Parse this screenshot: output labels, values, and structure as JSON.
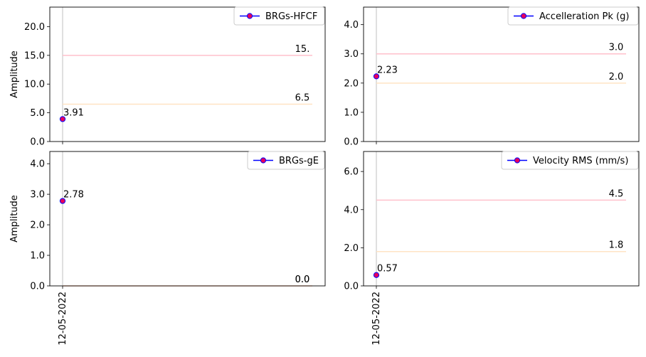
{
  "figure": {
    "shared_xlabel": "12-05-2022"
  },
  "chart_data": [
    {
      "type": "line",
      "x": [
        "12-05-2022"
      ],
      "series": [
        {
          "name": "BRGs-HFCF",
          "values": [
            3.91
          ],
          "labels": [
            "3.91"
          ]
        }
      ],
      "thresholds": [
        {
          "value": 15.0,
          "label": "15.",
          "color": "#ffc0cb"
        },
        {
          "value": 6.5,
          "label": "6.5",
          "color": "#ffe4c4"
        }
      ],
      "ylabel": "Amplitude",
      "ylim": [
        0,
        23.4
      ],
      "yticks": [
        "0.0",
        "5.0",
        "10.0",
        "15.0",
        "20.0"
      ],
      "ytick_values": [
        0,
        5,
        10,
        15,
        20
      ],
      "show_xtick_label": false,
      "legend": "top-right",
      "grid": false
    },
    {
      "type": "line",
      "x": [
        "12-05-2022"
      ],
      "series": [
        {
          "name": "Accelleration Pk (g)",
          "values": [
            2.23
          ],
          "labels": [
            "2.23"
          ]
        }
      ],
      "thresholds": [
        {
          "value": 3.0,
          "label": "3.0",
          "color": "#ffc0cb"
        },
        {
          "value": 2.0,
          "label": "2.0",
          "color": "#ffe4c4"
        }
      ],
      "ylabel": "",
      "ylim": [
        0,
        4.6
      ],
      "yticks": [
        "0.0",
        "1.0",
        "2.0",
        "3.0",
        "4.0"
      ],
      "ytick_values": [
        0,
        1,
        2,
        3,
        4
      ],
      "show_xtick_label": false,
      "legend": "top-right",
      "grid": false
    },
    {
      "type": "line",
      "x": [
        "12-05-2022"
      ],
      "series": [
        {
          "name": "BRGs-gE",
          "values": [
            2.78
          ],
          "labels": [
            "2.78"
          ]
        }
      ],
      "thresholds": [
        {
          "value": 0.0,
          "label": "0.0",
          "color": "#ffc0cb"
        },
        {
          "value": 0.0,
          "label": "0.0",
          "color": "#ffe4c4"
        }
      ],
      "ylabel": "Amplitude",
      "ylim": [
        0,
        4.4
      ],
      "yticks": [
        "0.0",
        "1.0",
        "2.0",
        "3.0",
        "4.0"
      ],
      "ytick_values": [
        0,
        1,
        2,
        3,
        4
      ],
      "show_xtick_label": true,
      "legend": "top-right",
      "grid": false
    },
    {
      "type": "line",
      "x": [
        "12-05-2022"
      ],
      "series": [
        {
          "name": "Velocity RMS (mm/s)",
          "values": [
            0.57
          ],
          "labels": [
            "0.57"
          ]
        }
      ],
      "thresholds": [
        {
          "value": 4.5,
          "label": "4.5",
          "color": "#ffc0cb"
        },
        {
          "value": 1.8,
          "label": "1.8",
          "color": "#ffe4c4"
        }
      ],
      "ylabel": "",
      "ylim": [
        0,
        7.05
      ],
      "yticks": [
        "0.0",
        "2.0",
        "4.0",
        "6.0"
      ],
      "ytick_values": [
        0,
        2,
        4,
        6
      ],
      "show_xtick_label": true,
      "legend": "top-right",
      "grid": false
    }
  ]
}
